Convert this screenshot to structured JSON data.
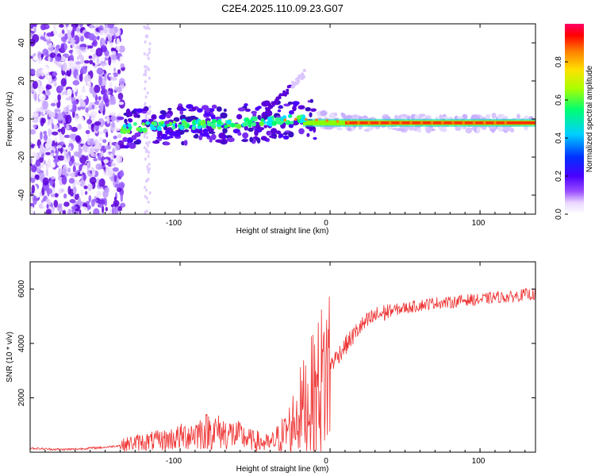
{
  "title": "C2E4.2025.110.09.23.G07",
  "chart_data": [
    {
      "type": "heatmap",
      "xlabel": "Height of straight line (km)",
      "ylabel": "Frequency (Hz)",
      "xlim": [
        -200,
        137
      ],
      "ylim": [
        -50,
        50
      ],
      "x_tick_labels": [
        "-100",
        "0",
        "100"
      ],
      "y_tick_labels": [
        "-40",
        "-20",
        "0",
        "20",
        "40"
      ],
      "colorbar": {
        "label": "Normalized spectral amplitude",
        "range": [
          0,
          1
        ],
        "tick_labels": [
          "0.0",
          "0.2",
          "0.4",
          "0.6",
          "0.8"
        ]
      },
      "signal_trace": {
        "x": [
          -140,
          -120,
          -100,
          -80,
          -60,
          -40,
          -20,
          0,
          20,
          60,
          100,
          137
        ],
        "y": [
          -5,
          -4,
          -3,
          -3,
          -2,
          -1,
          0,
          -1,
          -2,
          -2,
          -2,
          -2
        ]
      }
    },
    {
      "type": "line",
      "xlabel": "Height of straight line (km)",
      "ylabel": "SNR (10 * v/v)",
      "xlim": [
        -200,
        137
      ],
      "ylim": [
        0,
        7000
      ],
      "x_tick_labels": [
        "-100",
        "0",
        "100"
      ],
      "y_tick_labels": [
        "2000",
        "4000",
        "6000"
      ],
      "line_color": "#ee3333",
      "series": [
        {
          "x": [
            -200,
            -190,
            -180,
            -170,
            -160,
            -150,
            -140,
            -130,
            -120,
            -110,
            -100,
            -90,
            -80,
            -70,
            -60,
            -50,
            -40,
            -30,
            -20,
            -10,
            0,
            10,
            20,
            30,
            40,
            50,
            60,
            70,
            80,
            90,
            100,
            110,
            120,
            130,
            137
          ],
          "values": [
            150,
            120,
            100,
            110,
            150,
            180,
            250,
            350,
            400,
            450,
            550,
            700,
            800,
            700,
            600,
            400,
            300,
            700,
            1500,
            2200,
            3200,
            3900,
            4600,
            5000,
            5200,
            5300,
            5400,
            5500,
            5500,
            5600,
            5600,
            5700,
            5700,
            5800,
            5800
          ]
        }
      ]
    }
  ]
}
